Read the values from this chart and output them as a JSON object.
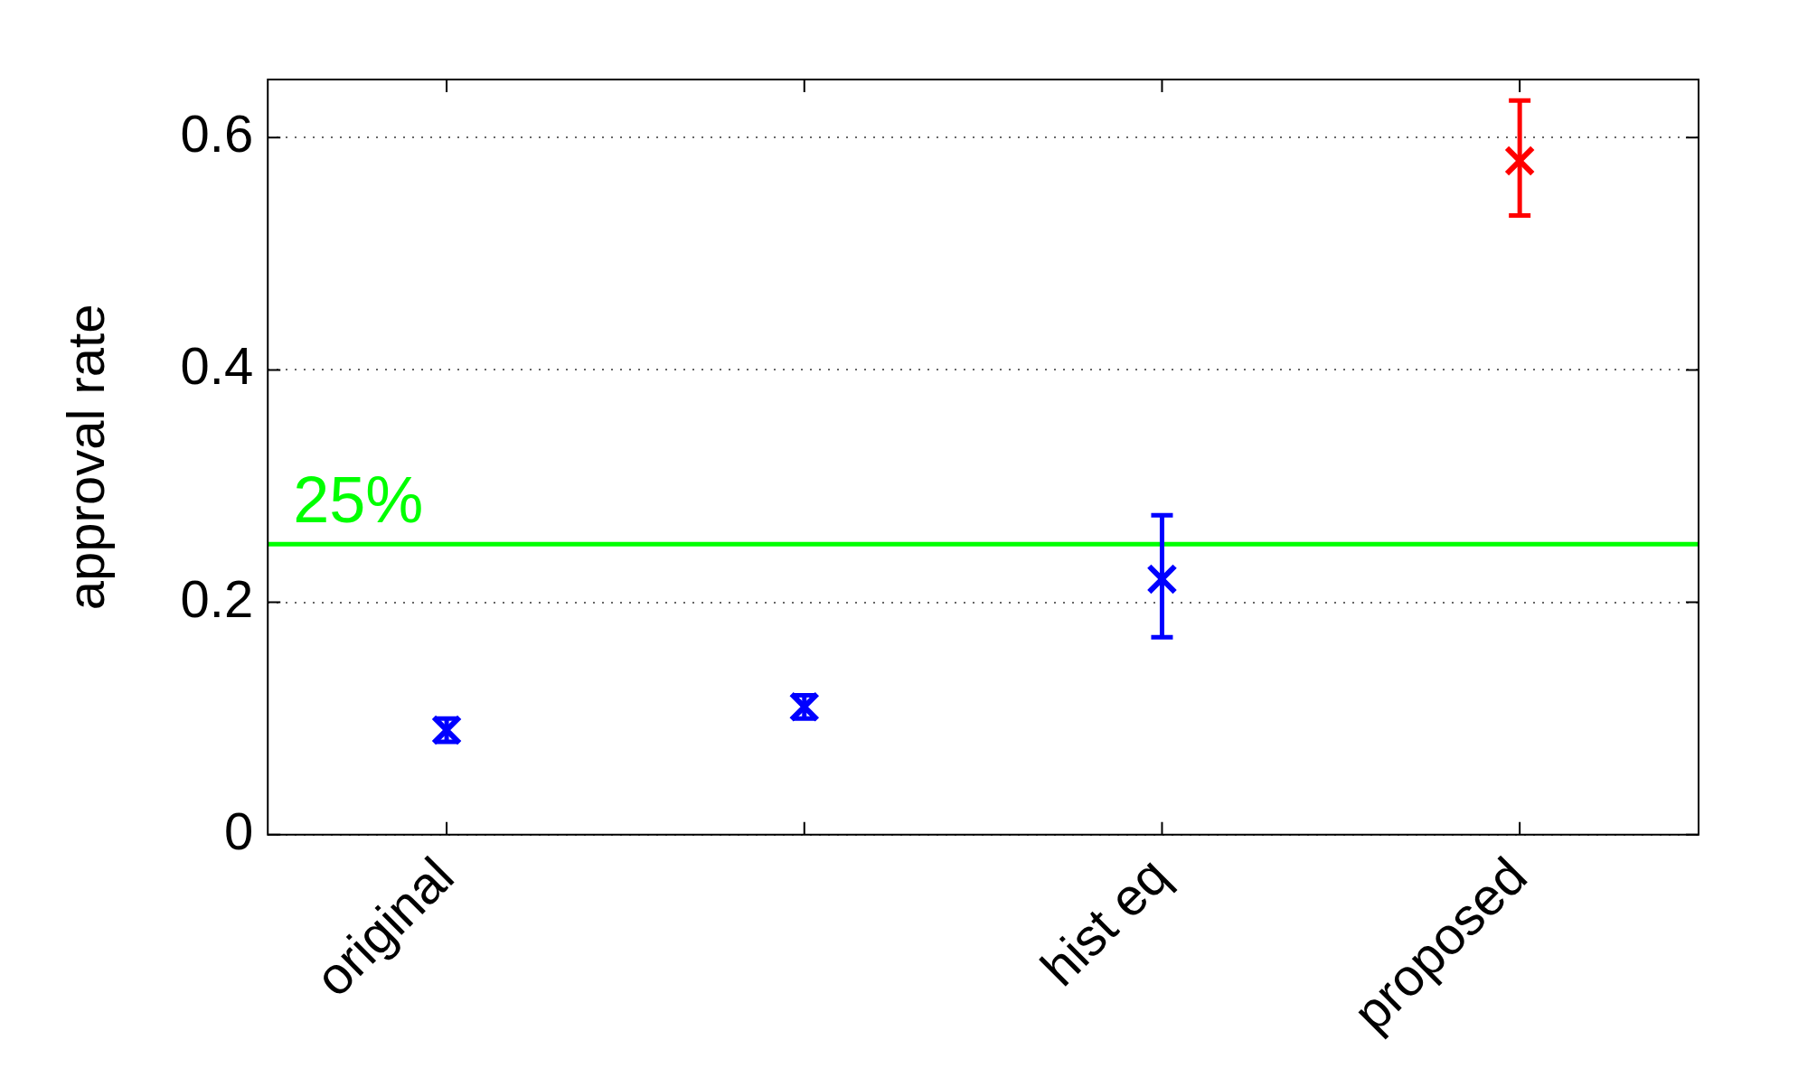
{
  "chart_data": {
    "type": "scatter",
    "ylabel": "approval rate",
    "categories": [
      "original",
      null,
      "hist eq",
      "proposed"
    ],
    "values": [
      0.09,
      0.11,
      0.22,
      0.58
    ],
    "errors": [
      0.01,
      0.01,
      [
        0.17,
        0.275
      ],
      [
        0.533,
        0.632
      ]
    ],
    "colors": [
      "#0000ff",
      "#0000ff",
      "#0000ff",
      "#ff0000"
    ],
    "ylim": [
      0,
      0.65
    ],
    "yticks": [
      0,
      0.2,
      0.4,
      0.6
    ],
    "grid": "y",
    "marker": "cross",
    "ref_lines": [
      {
        "axis": "y",
        "value": 0.25,
        "label": "25%",
        "color": "#00ff00"
      }
    ]
  }
}
